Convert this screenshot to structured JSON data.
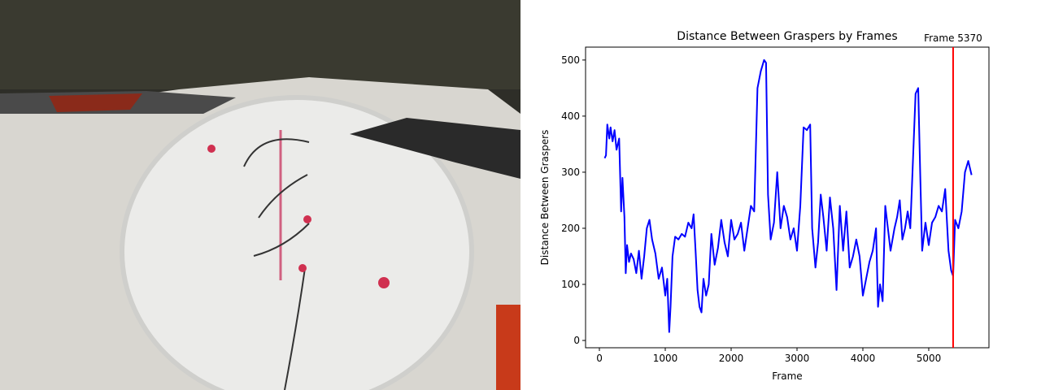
{
  "chart_data": {
    "type": "line",
    "title": "Distance Between Graspers by Frames",
    "x_label": "Frame",
    "y_label": "Distance Between Graspers",
    "color": "#0000ff",
    "x": [
      80,
      100,
      120,
      150,
      170,
      200,
      230,
      260,
      300,
      330,
      350,
      380,
      400,
      420,
      450,
      480,
      520,
      560,
      600,
      640,
      680,
      720,
      760,
      800,
      850,
      900,
      950,
      1000,
      1030,
      1060,
      1080,
      1110,
      1150,
      1200,
      1250,
      1300,
      1350,
      1400,
      1430,
      1460,
      1490,
      1520,
      1550,
      1580,
      1620,
      1660,
      1700,
      1750,
      1800,
      1850,
      1900,
      1950,
      2000,
      2050,
      2100,
      2150,
      2200,
      2250,
      2300,
      2350,
      2400,
      2450,
      2500,
      2530,
      2560,
      2600,
      2650,
      2700,
      2750,
      2800,
      2850,
      2900,
      2950,
      3000,
      3050,
      3100,
      3150,
      3200,
      3230,
      3280,
      3320,
      3360,
      3400,
      3450,
      3500,
      3550,
      3600,
      3650,
      3700,
      3750,
      3800,
      3850,
      3900,
      3950,
      4000,
      4050,
      4100,
      4150,
      4200,
      4230,
      4260,
      4300,
      4340,
      4380,
      4420,
      4480,
      4520,
      4560,
      4600,
      4640,
      4680,
      4720,
      4760,
      4800,
      4840,
      4870,
      4900,
      4950,
      5000,
      5050,
      5100,
      5150,
      5200,
      5250,
      5300,
      5340,
      5370,
      5400,
      5450,
      5500,
      5550,
      5600,
      5650
    ],
    "values": [
      325,
      330,
      385,
      360,
      380,
      355,
      375,
      340,
      360,
      230,
      290,
      220,
      120,
      170,
      140,
      155,
      145,
      120,
      160,
      110,
      150,
      200,
      215,
      180,
      155,
      110,
      130,
      80,
      110,
      15,
      60,
      150,
      185,
      180,
      190,
      185,
      210,
      200,
      225,
      160,
      90,
      60,
      50,
      110,
      80,
      100,
      190,
      135,
      165,
      215,
      175,
      150,
      215,
      180,
      190,
      210,
      160,
      200,
      240,
      230,
      450,
      480,
      500,
      495,
      260,
      180,
      210,
      300,
      200,
      240,
      220,
      180,
      200,
      160,
      240,
      380,
      375,
      385,
      200,
      130,
      175,
      260,
      220,
      160,
      255,
      200,
      90,
      240,
      160,
      230,
      130,
      150,
      180,
      150,
      80,
      110,
      140,
      160,
      200,
      60,
      100,
      70,
      240,
      200,
      160,
      200,
      220,
      250,
      180,
      200,
      230,
      200,
      320,
      440,
      450,
      300,
      160,
      210,
      170,
      210,
      220,
      240,
      230,
      270,
      160,
      125,
      115,
      215,
      200,
      230,
      300,
      320,
      295
    ],
    "xlim": [
      -210,
      5914
    ],
    "ylim": [
      -13,
      523
    ],
    "xticks": [
      0,
      1000,
      2000,
      3000,
      4000,
      5000
    ],
    "yticks": [
      0,
      100,
      200,
      300,
      400,
      500
    ],
    "vline": {
      "value": 5370,
      "label": "Frame 5370",
      "color": "#ff0000"
    }
  }
}
